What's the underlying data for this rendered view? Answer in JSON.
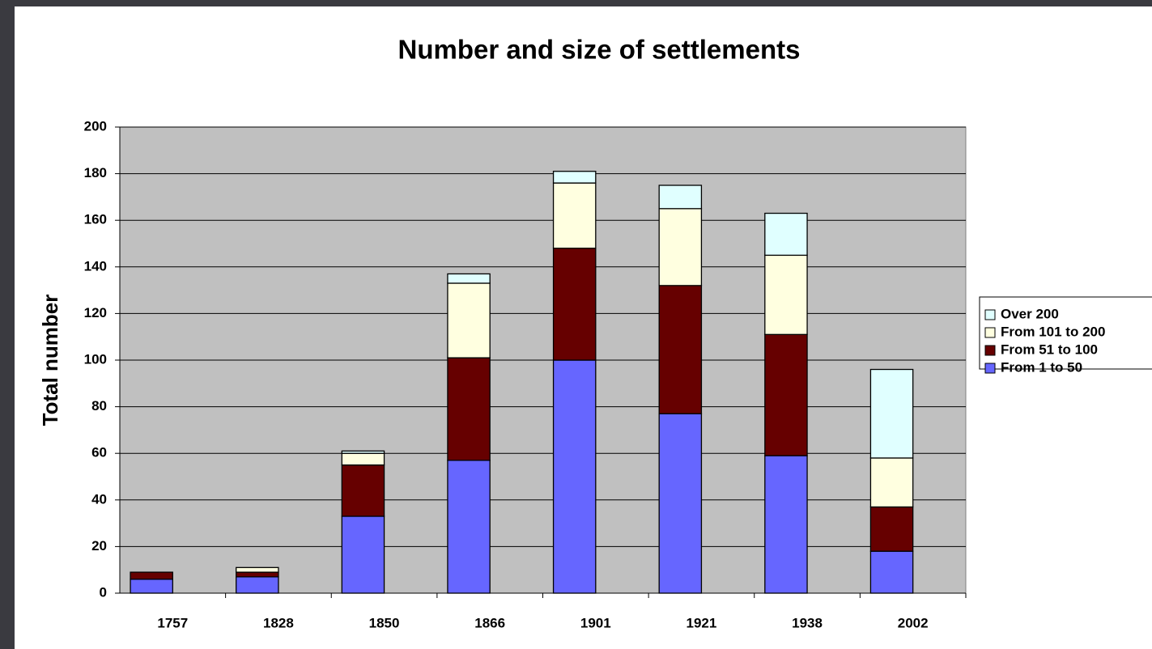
{
  "chart_data": {
    "type": "stacked_bar",
    "title": "Number and size of settlements",
    "y_label": "Total number",
    "categories": [
      "1757",
      "1828",
      "1850",
      "1866",
      "1901",
      "1921",
      "1938",
      "2002"
    ],
    "series": [
      {
        "name": "From 1 to 50",
        "color": "#6666ff",
        "values": [
          6,
          7,
          33,
          57,
          100,
          77,
          59,
          18
        ]
      },
      {
        "name": "From 51 to 100",
        "color": "#660000",
        "values": [
          3,
          2,
          22,
          44,
          48,
          55,
          52,
          19
        ]
      },
      {
        "name": "From 101 to 200",
        "color": "#ffffe0",
        "values": [
          0,
          2,
          5,
          32,
          28,
          33,
          34,
          21
        ]
      },
      {
        "name": "Over 200",
        "color": "#e0ffff",
        "values": [
          0,
          0,
          1,
          4,
          5,
          10,
          18,
          38
        ]
      }
    ],
    "ylim": [
      0,
      200
    ],
    "yticks": [
      0,
      20,
      40,
      60,
      80,
      100,
      120,
      140,
      160,
      180,
      200
    ],
    "grid": true,
    "legend": "right"
  }
}
